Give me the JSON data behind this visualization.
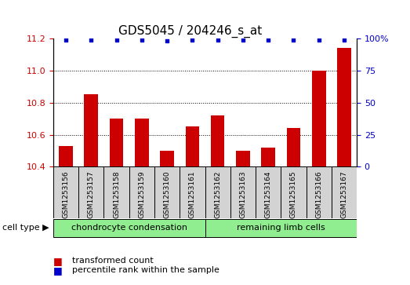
{
  "title": "GDS5045 / 204246_s_at",
  "samples": [
    "GSM1253156",
    "GSM1253157",
    "GSM1253158",
    "GSM1253159",
    "GSM1253160",
    "GSM1253161",
    "GSM1253162",
    "GSM1253163",
    "GSM1253164",
    "GSM1253165",
    "GSM1253166",
    "GSM1253167"
  ],
  "transformed_count": [
    10.53,
    10.85,
    10.7,
    10.7,
    10.5,
    10.65,
    10.72,
    10.5,
    10.52,
    10.64,
    11.0,
    11.14
  ],
  "percentile_rank": [
    99,
    99,
    99,
    99,
    98,
    99,
    99,
    99,
    99,
    99,
    99,
    99
  ],
  "ylim_left": [
    10.4,
    11.2
  ],
  "ylim_right": [
    0,
    100
  ],
  "bar_color": "#cc0000",
  "dot_color": "#0000cc",
  "groups": [
    {
      "label": "chondrocyte condensation",
      "start": 0,
      "end": 6,
      "color": "#90ee90"
    },
    {
      "label": "remaining limb cells",
      "start": 6,
      "end": 12,
      "color": "#90ee90"
    }
  ],
  "cell_type_label": "cell type",
  "legend_bar_label": "transformed count",
  "legend_dot_label": "percentile rank within the sample",
  "tick_color_left": "#cc0000",
  "tick_color_right": "#0000cc",
  "background_sample": "#d3d3d3",
  "title_fontsize": 11,
  "tick_fontsize": 8,
  "label_fontsize": 6.5,
  "group_fontsize": 8,
  "legend_fontsize": 8
}
